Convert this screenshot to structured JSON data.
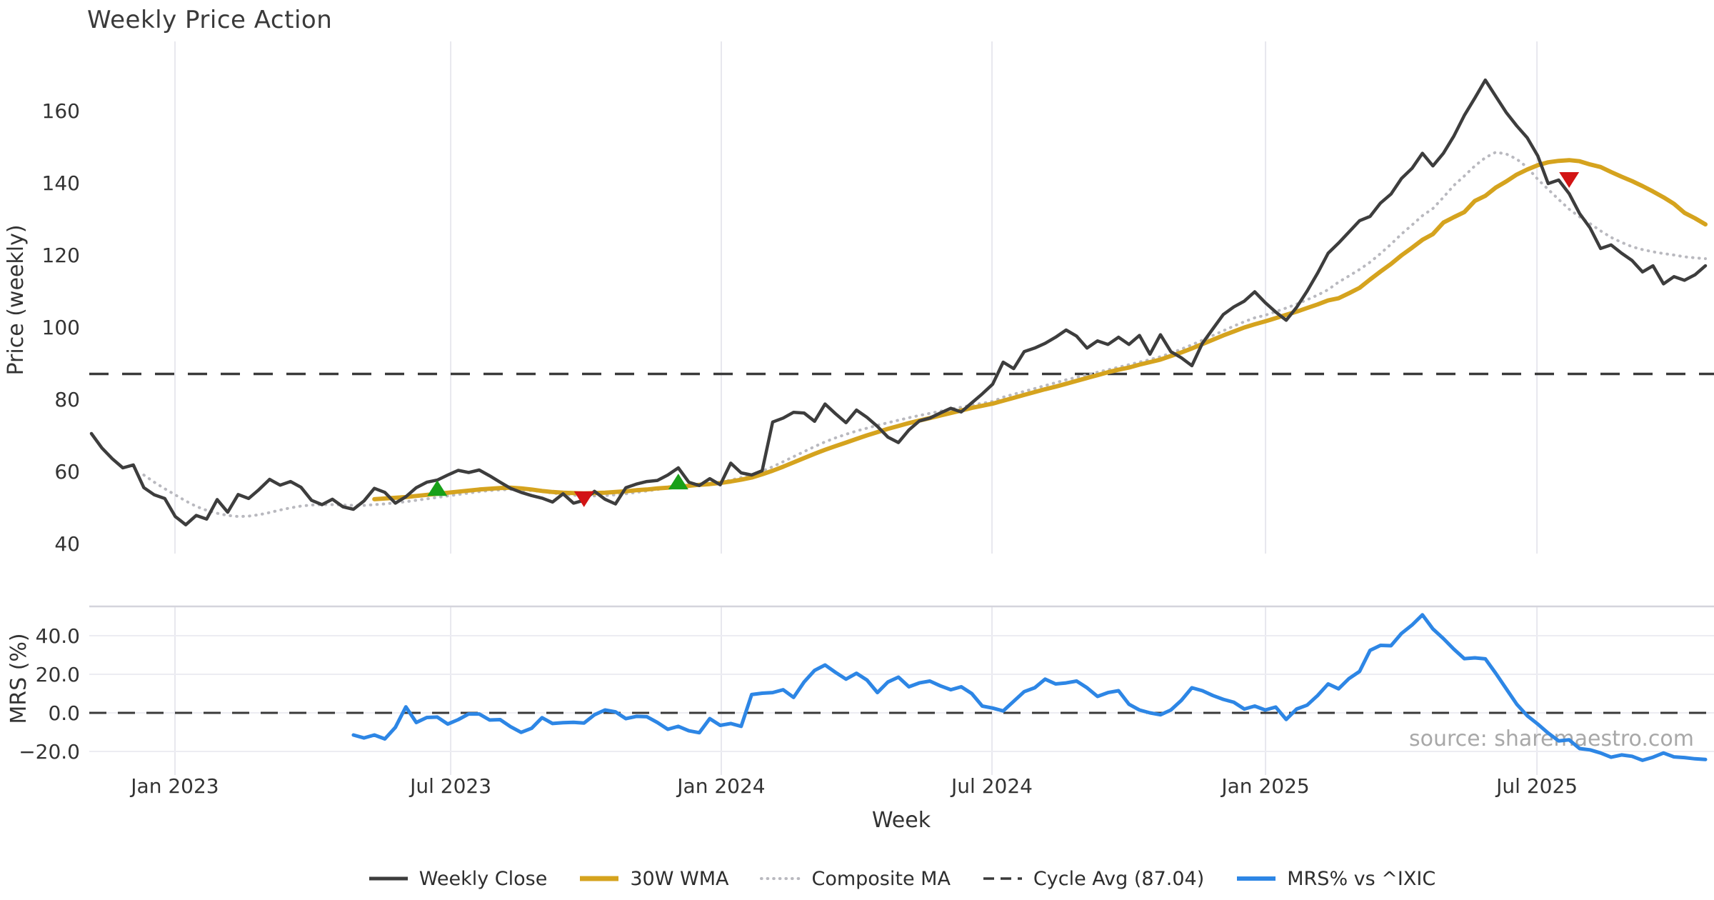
{
  "chart_data": {
    "type": "line",
    "title": "Weekly Price Action",
    "source_watermark": "source: sharemaestro.com",
    "x_axis": {
      "label": "Week",
      "ticks": [
        "Jan 2023",
        "Jul 2023",
        "Jan 2024",
        "Jul 2024",
        "Jan 2025",
        "Jul 2025"
      ],
      "tick_indices": [
        7.97,
        34.28,
        60.1,
        85.93,
        112.03,
        137.93
      ]
    },
    "panels": [
      {
        "name": "price",
        "ylabel": "Price (weekly)",
        "y_ticks": [
          160,
          140,
          120,
          100,
          80,
          60,
          40
        ],
        "ylim_note": "linear scale, 20 units per gridstep",
        "cycle_avg_value": 87.04
      },
      {
        "name": "mrs",
        "ylabel": "MRS (%)",
        "y_ticks": [
          40.0,
          20.0,
          0.0,
          -20.0
        ],
        "y_tick_labels": [
          "40.0",
          "20.0",
          "0.0",
          "−20.0"
        ],
        "zero_line": 0
      }
    ],
    "legend": [
      {
        "label": "Weekly Close",
        "style": "solid",
        "color": "#3d3d3d",
        "width": 5
      },
      {
        "label": "30W WMA",
        "style": "solid",
        "color": "#d5a31e",
        "width": 7
      },
      {
        "label": "Composite MA",
        "style": "dotted",
        "color": "#b9b9bf",
        "width": 4
      },
      {
        "label": "Cycle Avg (87.04)",
        "style": "dashed",
        "color": "#3a3a3a",
        "width": 3.5
      },
      {
        "label": "MRS% vs ^IXIC",
        "style": "solid",
        "color": "#2d86e5",
        "width": 6
      }
    ],
    "colors": {
      "weekly_close": "#3d3d3d",
      "wma30": "#d5a31e",
      "composite_ma": "#b9b9bf",
      "cycle_avg": "#3a3a3a",
      "mrs": "#2d86e5",
      "buy_marker": "#18a018",
      "sell_marker": "#d21414",
      "gridline": "#e8e8ee",
      "panel_border": "#d4d4dc",
      "tick_text": "#333333",
      "source_text": "#a8a8a8"
    },
    "series": {
      "weekly_close": [
        70.5,
        66.5,
        63.5,
        61.0,
        61.8,
        55.5,
        53.5,
        52.5,
        47.5,
        45.2,
        47.8,
        46.8,
        52.2,
        48.7,
        53.6,
        52.5,
        55.0,
        57.8,
        56.2,
        57.2,
        55.6,
        52.0,
        50.8,
        52.3,
        50.2,
        49.5,
        51.8,
        55.3,
        54.2,
        51.2,
        53.0,
        55.5,
        57.0,
        57.6,
        59.0,
        60.3,
        59.7,
        60.4,
        58.8,
        57.0,
        55.3,
        54.2,
        53.3,
        52.6,
        51.5,
        53.8,
        51.2,
        52.0,
        54.5,
        52.3,
        51.0,
        55.5,
        56.5,
        57.2,
        57.5,
        59.0,
        61.0,
        57.0,
        56.1,
        58.0,
        56.3,
        62.3,
        59.6,
        59.0,
        60.2,
        73.7,
        74.8,
        76.4,
        76.2,
        73.9,
        78.7,
        76.0,
        73.5,
        77.0,
        75.0,
        72.5,
        69.5,
        68.0,
        71.5,
        74.0,
        74.8,
        76.2,
        77.5,
        76.5,
        79.0,
        81.5,
        84.2,
        90.3,
        88.5,
        93.2,
        94.2,
        95.5,
        97.2,
        99.2,
        97.5,
        94.2,
        96.2,
        95.2,
        97.2,
        95.2,
        97.7,
        92.5,
        97.9,
        93.2,
        91.5,
        89.3,
        95.5,
        99.5,
        103.5,
        105.6,
        107.2,
        109.8,
        106.8,
        104.2,
        101.9,
        105.5,
        110.0,
        115.0,
        120.5,
        123.3,
        126.4,
        129.5,
        130.7,
        134.4,
        136.9,
        141.2,
        144.0,
        148.2,
        144.7,
        148.2,
        153.0,
        158.7,
        163.5,
        168.5,
        164.0,
        159.5,
        155.8,
        152.5,
        147.5,
        139.8,
        140.8,
        137.0,
        131.5,
        127.5,
        121.8,
        122.8,
        120.5,
        118.5,
        115.3,
        117.0,
        112.0,
        114.0,
        113.0,
        114.5,
        117.0
      ],
      "wma30": [
        null,
        null,
        null,
        null,
        null,
        null,
        null,
        null,
        null,
        null,
        null,
        null,
        null,
        null,
        null,
        null,
        null,
        null,
        null,
        null,
        null,
        null,
        null,
        null,
        null,
        null,
        null,
        52.3,
        52.5,
        52.7,
        52.9,
        53.2,
        53.5,
        53.8,
        54.1,
        54.4,
        54.7,
        55.0,
        55.2,
        55.4,
        55.5,
        55.3,
        55.0,
        54.6,
        54.3,
        54.1,
        54.0,
        53.9,
        54.0,
        54.1,
        54.3,
        54.5,
        54.8,
        55.0,
        55.3,
        55.5,
        55.8,
        56.0,
        56.3,
        56.5,
        56.8,
        57.2,
        57.7,
        58.3,
        59.2,
        60.2,
        61.3,
        62.5,
        63.7,
        64.9,
        66.0,
        67.0,
        68.0,
        69.0,
        70.0,
        70.9,
        71.8,
        72.6,
        73.4,
        74.1,
        74.8,
        75.5,
        76.2,
        76.9,
        77.6,
        78.2,
        78.8,
        79.6,
        80.4,
        81.2,
        82.0,
        82.8,
        83.5,
        84.3,
        85.1,
        85.9,
        86.7,
        87.5,
        88.2,
        88.8,
        89.6,
        90.3,
        91.0,
        92.0,
        93.0,
        94.1,
        95.3,
        96.5,
        97.7,
        98.8,
        99.9,
        100.8,
        101.6,
        102.5,
        103.4,
        104.3,
        105.3,
        106.3,
        107.4,
        108.0,
        109.4,
        110.9,
        113.2,
        115.4,
        117.5,
        119.9,
        122.0,
        124.2,
        125.8,
        129.0,
        130.5,
        131.9,
        135.0,
        136.4,
        138.7,
        140.4,
        142.3,
        143.7,
        144.9,
        145.7,
        146.1,
        146.3,
        146.0,
        145.1,
        144.4,
        143.0,
        141.7,
        140.5,
        139.1,
        137.6,
        136.0,
        134.2,
        131.7,
        130.2,
        128.5
      ],
      "composite_ma": [
        null,
        null,
        null,
        null,
        null,
        59.0,
        57.0,
        55.2,
        53.5,
        51.8,
        50.3,
        49.2,
        48.4,
        47.8,
        47.5,
        47.6,
        48.0,
        48.6,
        49.3,
        49.9,
        50.4,
        50.7,
        50.8,
        50.8,
        50.7,
        50.6,
        50.6,
        50.8,
        51.0,
        51.3,
        51.6,
        52.0,
        52.4,
        52.8,
        53.2,
        53.6,
        54.0,
        54.4,
        54.7,
        54.9,
        55.0,
        54.9,
        54.7,
        54.4,
        54.0,
        53.7,
        53.4,
        53.2,
        53.2,
        53.3,
        53.5,
        53.8,
        54.2,
        54.6,
        55.0,
        55.4,
        55.7,
        56.0,
        56.3,
        56.6,
        57.0,
        57.6,
        58.3,
        59.1,
        60.1,
        61.3,
        62.7,
        64.1,
        65.5,
        66.9,
        68.2,
        69.3,
        70.3,
        71.2,
        72.0,
        72.8,
        73.5,
        74.2,
        74.9,
        75.5,
        76.1,
        76.7,
        77.3,
        77.8,
        78.4,
        78.9,
        79.4,
        80.6,
        81.4,
        82.2,
        83.0,
        83.8,
        84.6,
        85.4,
        86.1,
        86.8,
        87.5,
        88.2,
        88.9,
        89.6,
        90.3,
        91.0,
        91.8,
        92.8,
        93.9,
        95.1,
        96.4,
        97.7,
        99.0,
        100.3,
        101.5,
        102.6,
        103.3,
        104.3,
        105.3,
        106.4,
        107.6,
        108.9,
        110.4,
        112.5,
        114.2,
        116.0,
        118.0,
        120.4,
        123.0,
        125.8,
        128.3,
        130.9,
        132.9,
        136.0,
        139.3,
        141.9,
        144.7,
        147.0,
        148.5,
        148.0,
        146.6,
        144.3,
        141.0,
        138.2,
        135.4,
        132.7,
        130.6,
        128.7,
        126.7,
        124.9,
        123.5,
        122.3,
        121.5,
        120.9,
        120.4,
        120.0,
        119.5,
        119.2,
        119.0
      ],
      "mrs_pct": [
        null,
        null,
        null,
        null,
        null,
        null,
        null,
        null,
        null,
        null,
        null,
        null,
        null,
        null,
        null,
        null,
        null,
        null,
        null,
        null,
        null,
        null,
        null,
        null,
        null,
        -11.5,
        -13.0,
        -11.5,
        -13.5,
        -7.5,
        3.1,
        -5.0,
        -2.4,
        -2.2,
        -5.8,
        -3.5,
        -0.6,
        -0.6,
        -3.7,
        -3.5,
        -7.2,
        -10.1,
        -8.0,
        -2.5,
        -5.5,
        -5.1,
        -4.9,
        -5.3,
        -1.0,
        1.5,
        0.5,
        -3.0,
        -1.8,
        -2.0,
        -5.0,
        -8.5,
        -7.0,
        -9.3,
        -10.3,
        -3.0,
        -6.5,
        -5.5,
        -7.0,
        9.5,
        10.2,
        10.5,
        12.0,
        8.0,
        16.0,
        22.0,
        24.8,
        21.0,
        17.5,
        20.5,
        17.0,
        10.5,
        16.0,
        18.5,
        13.5,
        15.5,
        16.5,
        14.0,
        12.0,
        13.5,
        10.0,
        3.5,
        2.5,
        1.0,
        6.0,
        11.0,
        13.0,
        17.5,
        15.0,
        15.5,
        16.5,
        13.0,
        8.5,
        10.5,
        11.5,
        4.5,
        1.5,
        0.0,
        -1.0,
        1.5,
        6.5,
        13.0,
        11.5,
        9.0,
        7.0,
        5.5,
        2.0,
        3.5,
        1.5,
        3.0,
        -3.4,
        2.0,
        4.0,
        9.0,
        15.0,
        12.5,
        17.8,
        21.5,
        32.4,
        35.0,
        34.8,
        41.2,
        45.5,
        50.8,
        43.5,
        38.5,
        33.0,
        28.1,
        28.5,
        28.0,
        20.5,
        12.5,
        4.5,
        -1.5,
        -5.8,
        -10.5,
        -14.5,
        -14.0,
        -18.5,
        -19.2,
        -20.8,
        -23.0,
        -21.8,
        -22.5,
        -24.6,
        -23.0,
        -20.8,
        -22.8,
        -23.2,
        -23.8,
        -24.2
      ]
    },
    "markers": {
      "buy": [
        {
          "index": 33,
          "value": 55.2
        },
        {
          "index": 56,
          "value": 57.0
        }
      ],
      "sell": [
        {
          "index": 47,
          "value": 52.5
        },
        {
          "index": 141,
          "value": 141.0
        }
      ]
    }
  }
}
